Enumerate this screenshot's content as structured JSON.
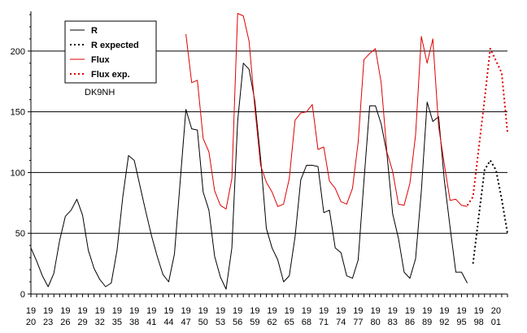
{
  "chart_data": {
    "type": "line",
    "title": "",
    "xlabel": "",
    "ylabel": "",
    "xlim": [
      1920,
      2003
    ],
    "ylim": [
      0,
      230
    ],
    "yticks": [
      0,
      50,
      100,
      150,
      200
    ],
    "grid": "horizontal",
    "legend_position": "top-left",
    "annotation": "DK9NH",
    "x_ticks": [
      {
        "year": 1920,
        "top": "19",
        "bottom": "20"
      },
      {
        "year": 1923,
        "top": "19",
        "bottom": "23"
      },
      {
        "year": 1926,
        "top": "19",
        "bottom": "26"
      },
      {
        "year": 1929,
        "top": "19",
        "bottom": "29"
      },
      {
        "year": 1932,
        "top": "19",
        "bottom": "32"
      },
      {
        "year": 1935,
        "top": "19",
        "bottom": "35"
      },
      {
        "year": 1938,
        "top": "19",
        "bottom": "38"
      },
      {
        "year": 1941,
        "top": "19",
        "bottom": "41"
      },
      {
        "year": 1944,
        "top": "19",
        "bottom": "44"
      },
      {
        "year": 1947,
        "top": "19",
        "bottom": "47"
      },
      {
        "year": 1950,
        "top": "19",
        "bottom": "50"
      },
      {
        "year": 1953,
        "top": "19",
        "bottom": "53"
      },
      {
        "year": 1956,
        "top": "19",
        "bottom": "56"
      },
      {
        "year": 1959,
        "top": "19",
        "bottom": "59"
      },
      {
        "year": 1962,
        "top": "19",
        "bottom": "62"
      },
      {
        "year": 1965,
        "top": "19",
        "bottom": "65"
      },
      {
        "year": 1968,
        "top": "19",
        "bottom": "68"
      },
      {
        "year": 1971,
        "top": "19",
        "bottom": "71"
      },
      {
        "year": 1974,
        "top": "19",
        "bottom": "74"
      },
      {
        "year": 1977,
        "top": "19",
        "bottom": "77"
      },
      {
        "year": 1980,
        "top": "19",
        "bottom": "80"
      },
      {
        "year": 1983,
        "top": "19",
        "bottom": "83"
      },
      {
        "year": 1986,
        "top": "19",
        "bottom": "86"
      },
      {
        "year": 1989,
        "top": "19",
        "bottom": "89"
      },
      {
        "year": 1992,
        "top": "19",
        "bottom": "92"
      },
      {
        "year": 1995,
        "top": "19",
        "bottom": "95"
      },
      {
        "year": 1998,
        "top": "19",
        "bottom": "98"
      },
      {
        "year": 2001,
        "top": "20",
        "bottom": "01"
      }
    ],
    "series": [
      {
        "name": "R",
        "color": "#000000",
        "style": "solid",
        "x": [
          1920,
          1921,
          1922,
          1923,
          1924,
          1925,
          1926,
          1927,
          1928,
          1929,
          1930,
          1931,
          1932,
          1933,
          1934,
          1935,
          1936,
          1937,
          1938,
          1939,
          1940,
          1941,
          1942,
          1943,
          1944,
          1945,
          1946,
          1947,
          1948,
          1949,
          1950,
          1951,
          1952,
          1953,
          1954,
          1955,
          1956,
          1957,
          1958,
          1959,
          1960,
          1961,
          1962,
          1963,
          1964,
          1965,
          1966,
          1967,
          1968,
          1969,
          1970,
          1971,
          1972,
          1973,
          1974,
          1975,
          1976,
          1977,
          1978,
          1979,
          1980,
          1981,
          1982,
          1983,
          1984,
          1985,
          1986,
          1987,
          1988,
          1989,
          1990,
          1991,
          1992,
          1993,
          1994,
          1995,
          1996
        ],
        "values": [
          38,
          27,
          15,
          6,
          17,
          44,
          64,
          69,
          78,
          65,
          36,
          21,
          12,
          6,
          9,
          36,
          80,
          114,
          110,
          89,
          68,
          48,
          31,
          16,
          10,
          33,
          93,
          152,
          136,
          135,
          84,
          69,
          31,
          14,
          4,
          38,
          142,
          190,
          185,
          159,
          112,
          54,
          38,
          28,
          10,
          15,
          47,
          94,
          106,
          106,
          105,
          67,
          69,
          38,
          34,
          15,
          13,
          28,
          93,
          155,
          155,
          140,
          116,
          66,
          46,
          18,
          13,
          29,
          85,
          158,
          142,
          146,
          94,
          55,
          18,
          18,
          9
        ]
      },
      {
        "name": "R expected",
        "color": "#000000",
        "style": "dotted",
        "x": [
          1997,
          1998,
          1999,
          2000,
          2001,
          2002,
          2003
        ],
        "values": [
          25,
          64,
          102,
          110,
          102,
          78,
          50
        ]
      },
      {
        "name": "Flux",
        "color": "#e00000",
        "style": "solid",
        "x": [
          1947,
          1948,
          1949,
          1950,
          1951,
          1952,
          1953,
          1954,
          1955,
          1956,
          1957,
          1958,
          1959,
          1960,
          1961,
          1962,
          1963,
          1964,
          1965,
          1966,
          1967,
          1968,
          1969,
          1970,
          1971,
          1972,
          1973,
          1974,
          1975,
          1976,
          1977,
          1978,
          1979,
          1980,
          1981,
          1982,
          1983,
          1984,
          1985,
          1986,
          1987,
          1988,
          1989,
          1990,
          1991,
          1992,
          1993,
          1994,
          1995,
          1996
        ],
        "values": [
          214,
          174,
          176,
          128,
          117,
          85,
          73,
          70,
          95,
          231,
          229,
          208,
          154,
          106,
          92,
          84,
          72,
          74,
          95,
          143,
          149,
          150,
          156,
          119,
          121,
          93,
          87,
          76,
          74,
          87,
          125,
          193,
          198,
          202,
          174,
          117,
          101,
          74,
          73,
          91,
          131,
          212,
          190,
          210,
          138,
          107,
          77,
          78,
          73,
          72
        ]
      },
      {
        "name": "Flux exp.",
        "color": "#e00000",
        "style": "dotted",
        "x": [
          1996,
          1997,
          1998,
          1999,
          2000,
          2001,
          2002,
          2003
        ],
        "values": [
          73,
          80,
          120,
          160,
          202,
          192,
          182,
          133
        ]
      }
    ]
  }
}
